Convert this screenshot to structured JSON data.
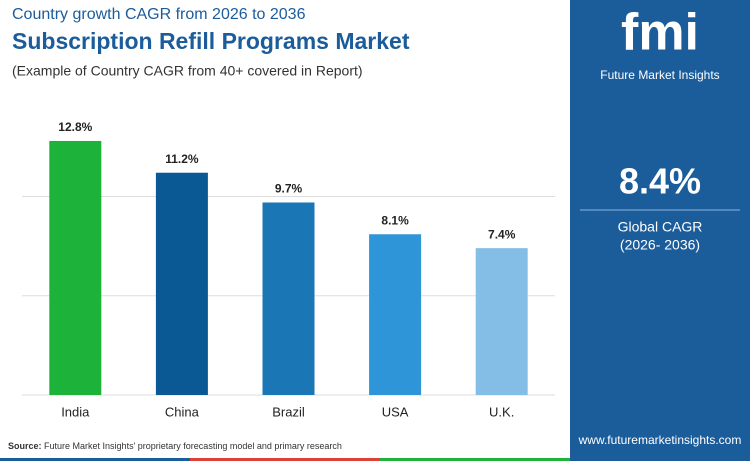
{
  "chart_data": {
    "type": "bar",
    "subtitle_top": "Country growth CAGR from 2026 to 2036",
    "title": "Subscription Refill Programs Market",
    "subtitle": "(Example of Country CAGR from 40+ covered in Report)",
    "categories": [
      "India",
      "China",
      "Brazil",
      "USA",
      "U.K."
    ],
    "values": [
      12.8,
      11.2,
      9.7,
      8.1,
      7.4
    ],
    "value_labels": [
      "12.8%",
      "11.2%",
      "9.7%",
      "8.1%",
      "7.4%"
    ],
    "colors": [
      "#1db33b",
      "#0b5994",
      "#1b76b6",
      "#2f95d9",
      "#84bee7"
    ],
    "ylim": [
      0,
      13
    ],
    "yticks": [
      0,
      5,
      10
    ],
    "grid": true
  },
  "side_panel": {
    "logo": "fmi",
    "brand": "Future Market Insights",
    "cagr": "8.4%",
    "cagr_label": "Global CAGR",
    "period": "(2026- 2036)",
    "website": "www.futuremarketinsights.com"
  },
  "footer": {
    "source_label": "Source:",
    "source_text": "Future Market Insights' proprietary forecasting model and primary research"
  }
}
